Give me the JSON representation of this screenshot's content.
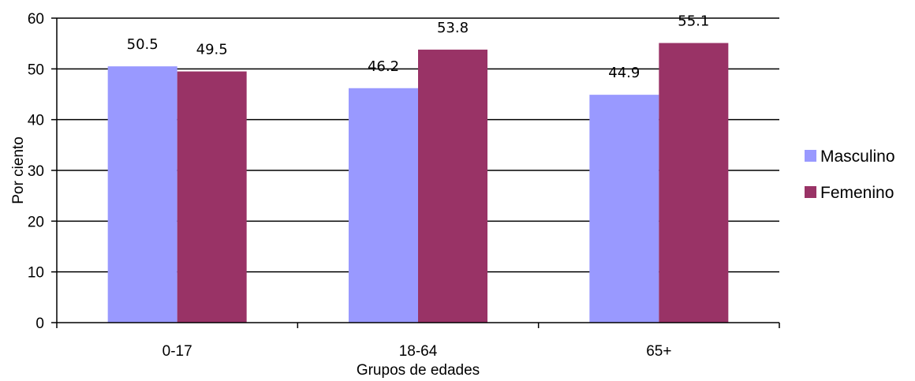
{
  "chart_data": {
    "type": "bar",
    "title": "",
    "xlabel": "Grupos de edades",
    "ylabel": "Por ciento",
    "categories": [
      "0-17",
      "18-64",
      "65+"
    ],
    "series": [
      {
        "name": "Masculino",
        "values": [
          50.5,
          46.2,
          44.9
        ],
        "color": "#9999ff"
      },
      {
        "name": "Femenino",
        "values": [
          49.5,
          53.8,
          55.1
        ],
        "color": "#993366"
      }
    ],
    "ylim": [
      0,
      60
    ],
    "yticks": [
      0,
      10,
      20,
      30,
      40,
      50,
      60
    ],
    "grid": true,
    "legend_position": "right",
    "data_labels": true
  }
}
